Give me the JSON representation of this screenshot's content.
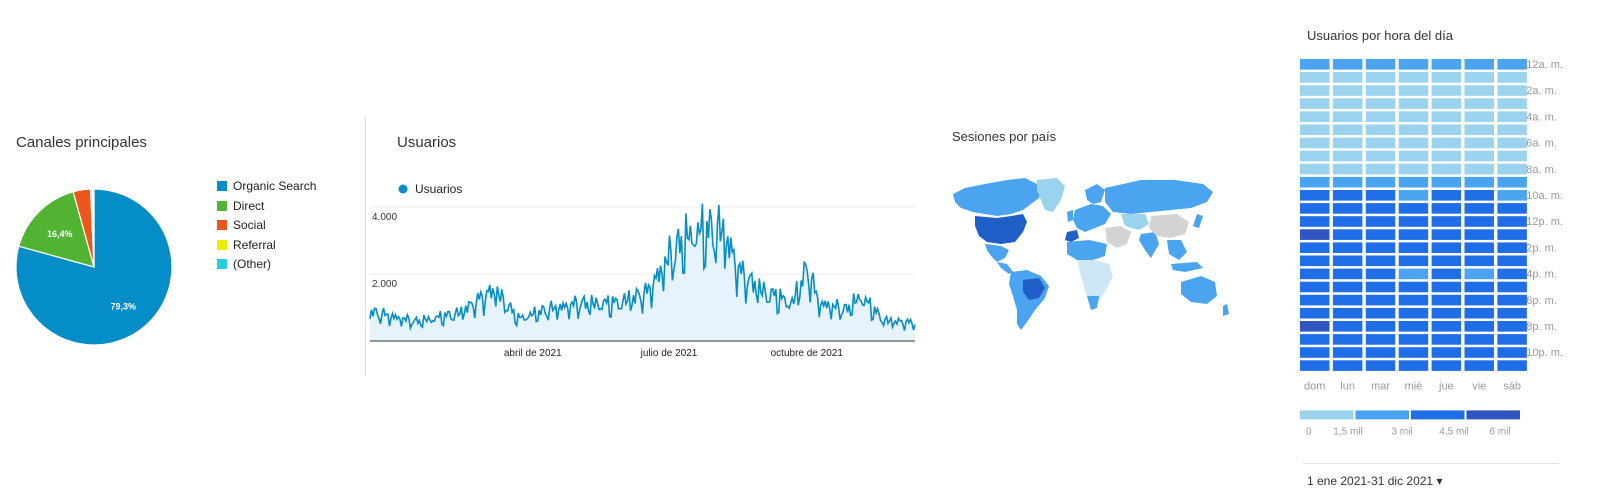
{
  "chart_data": [
    {
      "type": "pie",
      "title": "Canales principales",
      "series": [
        {
          "name": "Organic Search",
          "value": 79.3,
          "color": "#058dc7",
          "label": "79,3%"
        },
        {
          "name": "Direct",
          "value": 16.4,
          "color": "#50b432",
          "label": "16,4%"
        },
        {
          "name": "Social",
          "value": 3.6,
          "color": "#ed561b",
          "label": ""
        },
        {
          "name": "Referral",
          "value": 0.4,
          "color": "#edef00",
          "label": ""
        },
        {
          "name": "(Other)",
          "value": 0.3,
          "color": "#24cbe5",
          "label": ""
        }
      ]
    },
    {
      "type": "line",
      "title": "Usuarios",
      "series": [
        {
          "name": "Usuarios",
          "color": "#058dc7"
        }
      ],
      "x_ticks": [
        "abril de 2021",
        "julio de 2021",
        "octubre de 2021"
      ],
      "y_ticks": [
        "4.000",
        "2.000"
      ],
      "ylim": [
        0,
        4000
      ],
      "x_range": [
        "2021-01-01",
        "2021-12-31"
      ],
      "anchors": [
        {
          "x": "2021-01-01",
          "y": 850
        },
        {
          "x": "2021-02-01",
          "y": 560
        },
        {
          "x": "2021-03-01",
          "y": 800
        },
        {
          "x": "2021-03-25",
          "y": 1500
        },
        {
          "x": "2021-04-10",
          "y": 650
        },
        {
          "x": "2021-05-01",
          "y": 920
        },
        {
          "x": "2021-05-20",
          "y": 1080
        },
        {
          "x": "2021-06-15",
          "y": 1100
        },
        {
          "x": "2021-07-05",
          "y": 1400
        },
        {
          "x": "2021-07-20",
          "y": 2450
        },
        {
          "x": "2021-08-05",
          "y": 3150
        },
        {
          "x": "2021-08-25",
          "y": 3200
        },
        {
          "x": "2021-09-05",
          "y": 2000
        },
        {
          "x": "2021-09-20",
          "y": 1450
        },
        {
          "x": "2021-10-10",
          "y": 1100
        },
        {
          "x": "2021-10-20",
          "y": 2100
        },
        {
          "x": "2021-10-28",
          "y": 1100
        },
        {
          "x": "2021-11-15",
          "y": 900
        },
        {
          "x": "2021-11-25",
          "y": 1300
        },
        {
          "x": "2021-12-10",
          "y": 600
        },
        {
          "x": "2021-12-31",
          "y": 520
        }
      ]
    },
    {
      "type": "heatmap",
      "title": "Usuarios por hora del día",
      "days": [
        "dom",
        "lun",
        "mar",
        "mié",
        "jue",
        "vie",
        "sáb"
      ],
      "hour_labels": [
        "12a. m.",
        "2a. m.",
        "4a. m.",
        "6a. m.",
        "8a. m.",
        "10a. m.",
        "12p. m.",
        "2p. m.",
        "4p. m.",
        "6p. m.",
        "8p. m.",
        "10p. m."
      ],
      "scale_labels": [
        "0",
        "1,5 mil",
        "3 mil",
        "4,5 mil",
        "6 mil"
      ],
      "scale_colors": [
        "#9bd3ee",
        "#4aa4f0",
        "#1f6ee8",
        "#2f55c0"
      ],
      "levels": [
        [
          1,
          1,
          1,
          1,
          1,
          1,
          1
        ],
        [
          0,
          0,
          0,
          0,
          0,
          0,
          0
        ],
        [
          0,
          0,
          0,
          0,
          0,
          0,
          0
        ],
        [
          0,
          0,
          0,
          0,
          0,
          0,
          0
        ],
        [
          0,
          0,
          0,
          0,
          0,
          0,
          0
        ],
        [
          0,
          0,
          0,
          0,
          0,
          0,
          0
        ],
        [
          0,
          0,
          0,
          0,
          0,
          0,
          0
        ],
        [
          0,
          0,
          0,
          0,
          0,
          0,
          0
        ],
        [
          0,
          0,
          0,
          0,
          0,
          0,
          0
        ],
        [
          1,
          1,
          1,
          1,
          1,
          1,
          1
        ],
        [
          2,
          2,
          2,
          1,
          2,
          2,
          1
        ],
        [
          2,
          2,
          2,
          2,
          2,
          2,
          2
        ],
        [
          2,
          2,
          2,
          2,
          2,
          2,
          2
        ],
        [
          3,
          2,
          2,
          2,
          2,
          2,
          2
        ],
        [
          2,
          2,
          2,
          2,
          2,
          2,
          2
        ],
        [
          2,
          2,
          2,
          2,
          2,
          2,
          2
        ],
        [
          2,
          2,
          2,
          1,
          2,
          1,
          2
        ],
        [
          2,
          2,
          2,
          2,
          2,
          2,
          2
        ],
        [
          2,
          2,
          2,
          2,
          2,
          2,
          2
        ],
        [
          2,
          2,
          2,
          2,
          2,
          2,
          2
        ],
        [
          3,
          2,
          2,
          2,
          2,
          2,
          2
        ],
        [
          2,
          2,
          2,
          2,
          2,
          2,
          2
        ],
        [
          2,
          2,
          2,
          2,
          2,
          2,
          2
        ],
        [
          2,
          2,
          2,
          2,
          2,
          2,
          2
        ]
      ]
    }
  ],
  "map": {
    "title": "Sesiones por país",
    "colors": {
      "land": "#4aa4f0",
      "light": "#9bd3ee",
      "pale": "#cde7f7",
      "grey": "#d3d3d3",
      "dark": "#1f5fc8"
    }
  },
  "date_range": "1 ene 2021-31 dic 2021 ▾"
}
